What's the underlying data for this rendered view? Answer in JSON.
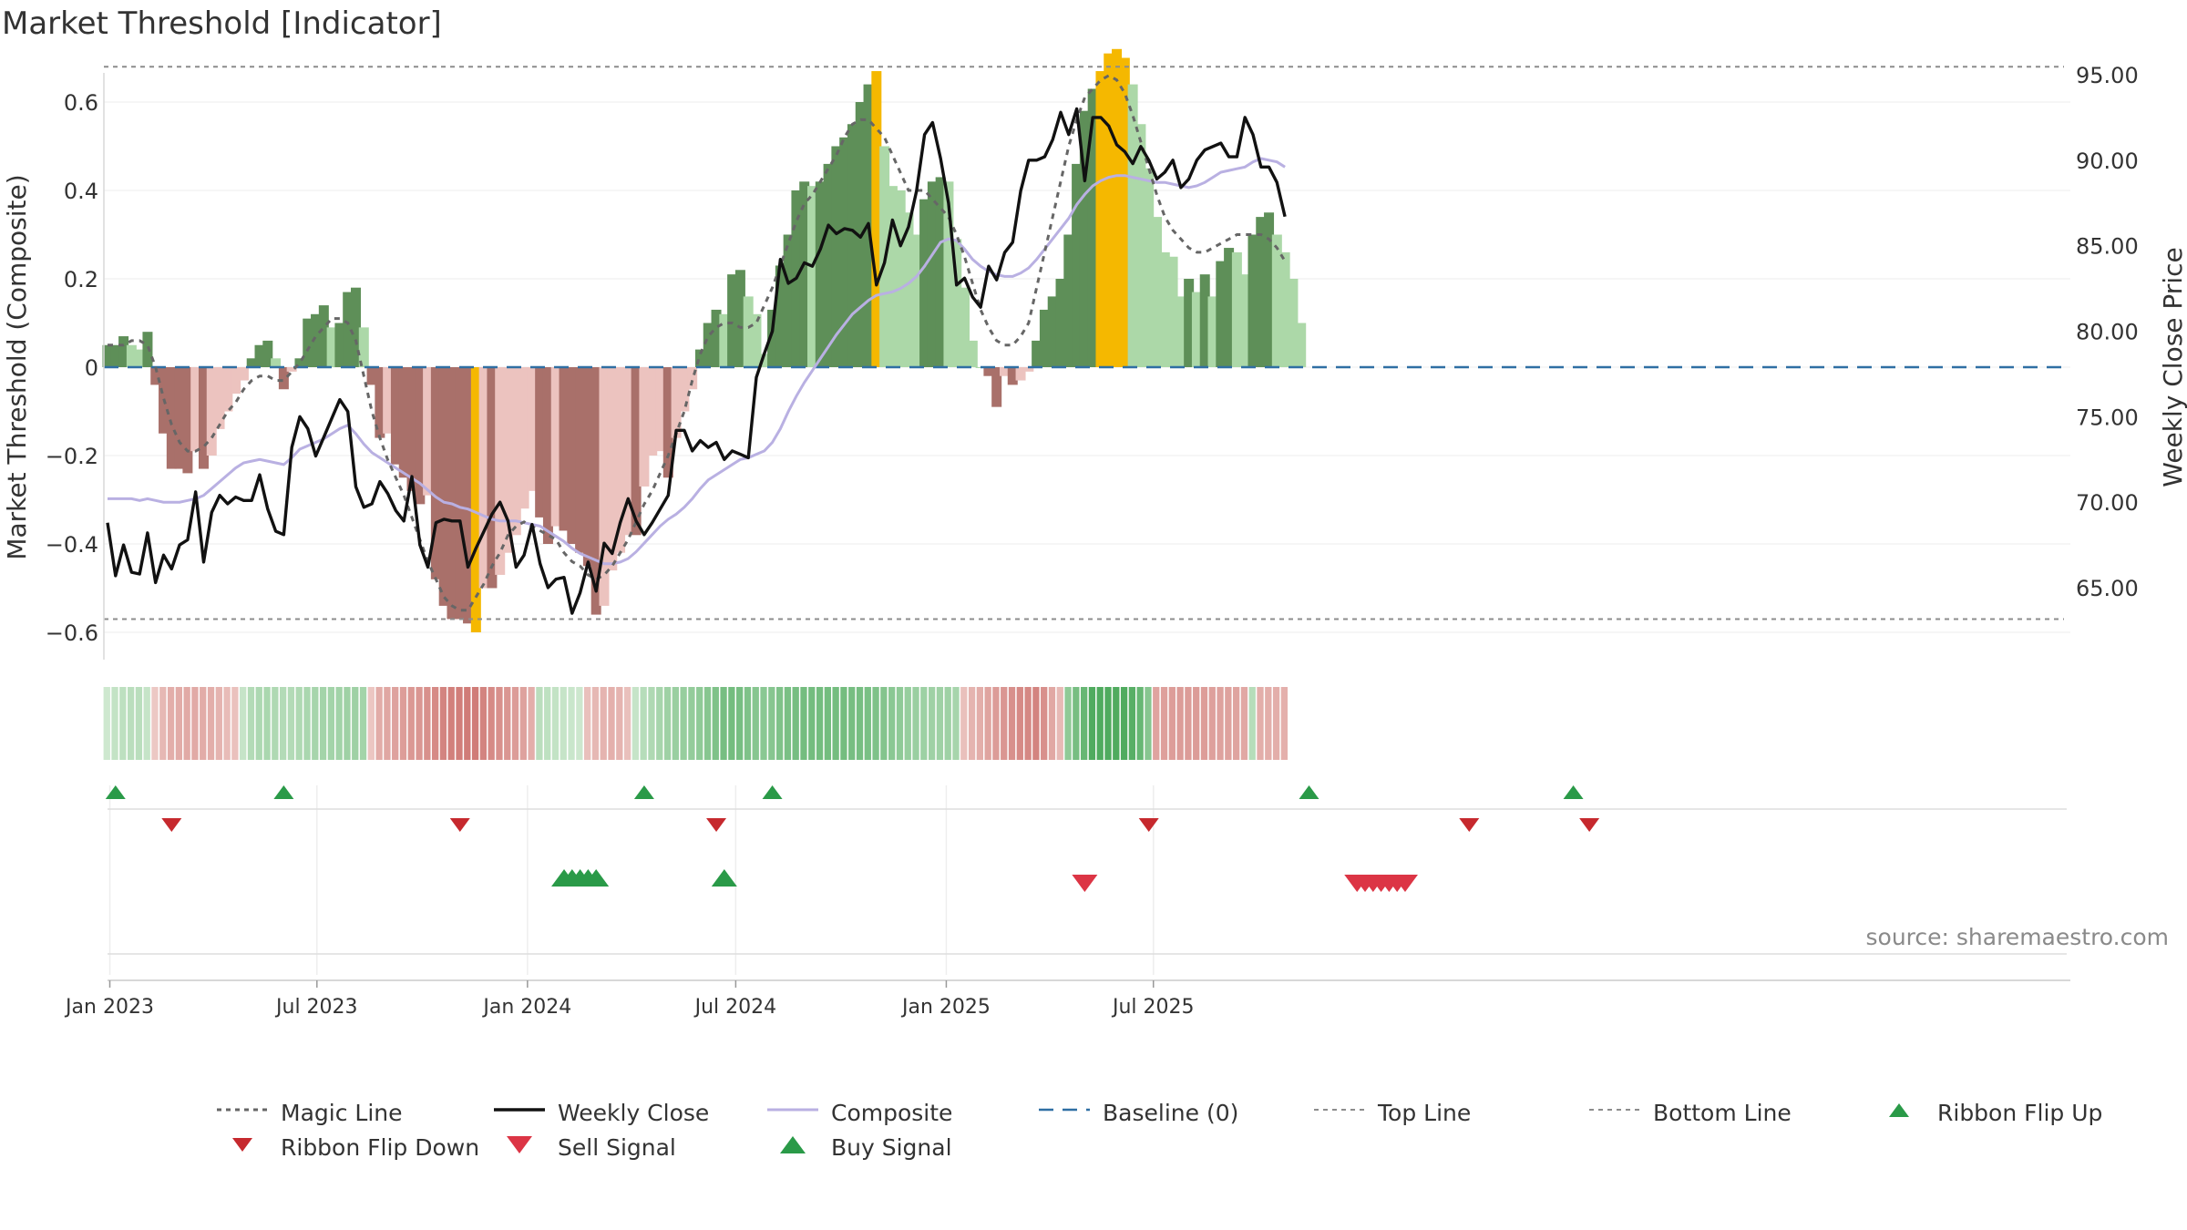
{
  "title": "Market Threshold [Indicator]",
  "source": "source: sharemaestro.com",
  "colors": {
    "bull_light": "#acd8a8",
    "bull_dark": "#5e8f58",
    "bear_light": "#ecc3bf",
    "bear_dark": "#a9706a",
    "extreme": "#f5b800",
    "weekly_close": "#111111",
    "composite": "#b9b0e2",
    "magic": "#666666",
    "baseline": "#2f6fa3",
    "flip_up": "#2a9a48",
    "flip_down": "#c6292e",
    "sell": "#dc3545",
    "buy": "#2a9a48"
  },
  "chart_data": {
    "type": "bar",
    "start_week": "2022-12-30",
    "left_axis": {
      "label": "Market Threshold (Composite)",
      "ticks": [
        "−0.6",
        "−0.4",
        "−0.2",
        "0",
        "0.2",
        "0.4",
        "0.6"
      ],
      "tick_values": [
        -0.6,
        -0.4,
        -0.2,
        0,
        0.2,
        0.4,
        0.6
      ],
      "ylim": [
        -0.8,
        0.8
      ]
    },
    "right_axis": {
      "label": "Weekly Close Price",
      "ticks": [
        "65.00",
        "70.00",
        "75.00",
        "80.00",
        "85.00",
        "90.00",
        "95.00"
      ],
      "tick_values": [
        65,
        70,
        75,
        80,
        85,
        90,
        95
      ],
      "ylim": [
        60.7,
        96.5
      ]
    },
    "x_axis": {
      "ticks": [
        "Jan 2023",
        "Jul 2023",
        "Jan 2024",
        "Jul 2024",
        "Jan 2025",
        "Jul 2025"
      ],
      "tick_dates": [
        "2023-01-01",
        "2023-07-01",
        "2024-01-01",
        "2024-07-01",
        "2025-01-01",
        "2025-07-01"
      ]
    },
    "reference_lines": {
      "top": 0.68,
      "bottom": -0.57,
      "baseline": 0
    },
    "composite_bars": [
      0.05,
      0.05,
      0.07,
      0.05,
      0.04,
      0.08,
      -0.04,
      -0.15,
      -0.23,
      -0.23,
      -0.24,
      -0.19,
      -0.23,
      -0.2,
      -0.14,
      -0.1,
      -0.06,
      -0.03,
      0.02,
      0.05,
      0.06,
      0.02,
      -0.05,
      -0.01,
      0.02,
      0.11,
      0.12,
      0.14,
      0.09,
      0.1,
      0.17,
      0.18,
      0.09,
      -0.04,
      -0.16,
      -0.15,
      -0.22,
      -0.25,
      -0.28,
      -0.31,
      -0.29,
      -0.48,
      -0.54,
      -0.57,
      -0.57,
      -0.58,
      -0.6,
      -0.5,
      -0.5,
      -0.47,
      -0.42,
      -0.38,
      -0.32,
      -0.28,
      -0.34,
      -0.4,
      -0.36,
      -0.37,
      -0.4,
      -0.42,
      -0.45,
      -0.56,
      -0.54,
      -0.46,
      -0.42,
      -0.38,
      -0.38,
      -0.27,
      -0.2,
      -0.19,
      -0.25,
      -0.16,
      -0.1,
      -0.05,
      0.04,
      0.1,
      0.13,
      0.12,
      0.21,
      0.22,
      0.16,
      0.12,
      0.03,
      0.13,
      0.23,
      0.3,
      0.4,
      0.42,
      0.41,
      0.42,
      0.46,
      0.5,
      0.52,
      0.55,
      0.6,
      0.64,
      0.67,
      0.5,
      0.41,
      0.4,
      0.35,
      0.3,
      0.38,
      0.42,
      0.43,
      0.42,
      0.29,
      0.18,
      0.06,
      0,
      -0.02,
      -0.09,
      -0.02,
      -0.04,
      -0.03,
      -0.01,
      0.06,
      0.13,
      0.16,
      0.2,
      0.3,
      0.46,
      0.58,
      0.63,
      0.67,
      0.71,
      0.72,
      0.7,
      0.64,
      0.55,
      0.45,
      0.34,
      0.26,
      0.25,
      0.16,
      0.2,
      0.17,
      0.21,
      0.16,
      0.24,
      0.27,
      0.26,
      0.21,
      0.3,
      0.34,
      0.35,
      0.3,
      0.26,
      0.2,
      0.1
    ],
    "weekly_close": [
      68.8,
      65.7,
      67.5,
      65.9,
      65.8,
      68.2,
      65.3,
      66.9,
      66.1,
      67.5,
      67.8,
      70.6,
      66.5,
      69.4,
      70.4,
      69.9,
      70.3,
      70.1,
      70.1,
      71.6,
      69.6,
      68.3,
      68.1,
      73.2,
      75.0,
      74.3,
      72.7,
      73.8,
      74.9,
      76.0,
      75.3,
      70.9,
      69.7,
      69.9,
      71.2,
      70.5,
      69.5,
      68.9,
      71.5,
      67.5,
      66.2,
      68.8,
      69.0,
      68.9,
      68.9,
      66.2,
      67.3,
      68.3,
      69.3,
      70.0,
      68.9,
      66.2,
      66.9,
      68.7,
      66.4,
      65.0,
      65.5,
      65.6,
      63.5,
      64.7,
      66.5,
      64.8,
      67.6,
      67.0,
      68.8,
      70.2,
      68.9,
      68.1,
      68.8,
      69.6,
      70.4,
      74.2,
      74.2,
      73.0,
      73.6,
      73.2,
      73.5,
      72.5,
      73.0,
      72.8,
      72.6,
      77.3,
      78.7,
      80.0,
      84.2,
      82.8,
      83.1,
      84.0,
      83.8,
      84.8,
      86.2,
      85.7,
      86.0,
      85.9,
      85.5,
      86.3,
      82.7,
      84.0,
      86.5,
      85.0,
      86.1,
      88.2,
      91.5,
      92.2,
      90.1,
      87.5,
      82.7,
      83.1,
      82.0,
      81.4,
      83.8,
      83.0,
      84.6,
      85.2,
      88.2,
      90.0,
      90.0,
      90.2,
      91.2,
      92.8,
      91.5,
      93.0,
      88.8,
      92.5,
      92.5,
      92.0,
      90.9,
      90.5,
      89.8,
      90.8,
      90.0,
      88.9,
      89.3,
      90.0,
      88.4,
      88.9,
      90.0,
      90.6,
      90.8,
      91.0,
      90.2,
      90.2,
      92.5,
      91.5,
      89.6,
      89.6,
      88.7,
      86.7
    ],
    "composite_line": [
      70.2,
      70.2,
      70.2,
      70.2,
      70.1,
      70.2,
      70.1,
      70.0,
      70.0,
      70.0,
      70.1,
      70.2,
      70.4,
      70.8,
      71.2,
      71.6,
      72.0,
      72.3,
      72.4,
      72.5,
      72.4,
      72.3,
      72.2,
      72.6,
      73.1,
      73.3,
      73.5,
      73.7,
      74.0,
      74.3,
      74.5,
      74.0,
      73.4,
      72.9,
      72.6,
      72.3,
      72.0,
      71.7,
      71.4,
      71.1,
      70.7,
      70.3,
      70.0,
      69.9,
      69.7,
      69.6,
      69.4,
      69.2,
      69.0,
      68.9,
      68.9,
      68.9,
      68.8,
      68.7,
      68.6,
      68.3,
      68.0,
      67.7,
      67.3,
      67.0,
      66.8,
      66.6,
      66.4,
      66.4,
      66.5,
      66.7,
      67.1,
      67.6,
      68.1,
      68.6,
      69.0,
      69.3,
      69.7,
      70.2,
      70.8,
      71.3,
      71.6,
      71.9,
      72.2,
      72.5,
      72.6,
      72.8,
      73.0,
      73.5,
      74.3,
      75.3,
      76.2,
      77.0,
      77.7,
      78.4,
      79.1,
      79.8,
      80.4,
      81.0,
      81.4,
      81.8,
      82.1,
      82.2,
      82.3,
      82.5,
      82.8,
      83.2,
      83.8,
      84.5,
      85.2,
      85.4,
      85.3,
      84.8,
      84.2,
      83.8,
      83.5,
      83.3,
      83.2,
      83.2,
      83.4,
      83.7,
      84.2,
      84.8,
      85.4,
      86.0,
      86.6,
      87.4,
      88.0,
      88.5,
      88.8,
      89.0,
      89.1,
      89.1,
      89.0,
      88.9,
      88.8,
      88.7,
      88.7,
      88.6,
      88.5,
      88.4,
      88.5,
      88.7,
      89.0,
      89.3,
      89.4,
      89.5,
      89.6,
      89.9,
      90.1,
      90.0,
      89.9,
      89.6
    ],
    "magic_line": [
      0.05,
      0.05,
      0.05,
      0.06,
      0.06,
      0.05,
      0.0,
      -0.07,
      -0.13,
      -0.17,
      -0.19,
      -0.19,
      -0.18,
      -0.16,
      -0.13,
      -0.1,
      -0.08,
      -0.05,
      -0.03,
      -0.02,
      -0.02,
      -0.03,
      -0.03,
      -0.01,
      0.01,
      0.04,
      0.07,
      0.09,
      0.11,
      0.11,
      0.1,
      0.06,
      -0.02,
      -0.1,
      -0.16,
      -0.21,
      -0.25,
      -0.29,
      -0.34,
      -0.39,
      -0.44,
      -0.48,
      -0.52,
      -0.54,
      -0.55,
      -0.55,
      -0.52,
      -0.49,
      -0.45,
      -0.42,
      -0.38,
      -0.36,
      -0.35,
      -0.36,
      -0.37,
      -0.38,
      -0.39,
      -0.42,
      -0.44,
      -0.45,
      -0.47,
      -0.48,
      -0.47,
      -0.45,
      -0.42,
      -0.39,
      -0.35,
      -0.31,
      -0.28,
      -0.24,
      -0.2,
      -0.15,
      -0.1,
      -0.03,
      0.03,
      0.07,
      0.09,
      0.1,
      0.1,
      0.09,
      0.09,
      0.1,
      0.14,
      0.18,
      0.23,
      0.28,
      0.33,
      0.37,
      0.39,
      0.42,
      0.45,
      0.48,
      0.52,
      0.55,
      0.56,
      0.56,
      0.54,
      0.52,
      0.48,
      0.44,
      0.4,
      0.4,
      0.4,
      0.38,
      0.36,
      0.34,
      0.3,
      0.25,
      0.19,
      0.13,
      0.09,
      0.06,
      0.05,
      0.05,
      0.07,
      0.1,
      0.18,
      0.26,
      0.34,
      0.42,
      0.5,
      0.56,
      0.61,
      0.63,
      0.65,
      0.66,
      0.65,
      0.62,
      0.57,
      0.51,
      0.45,
      0.39,
      0.34,
      0.31,
      0.29,
      0.27,
      0.26,
      0.26,
      0.27,
      0.28,
      0.29,
      0.3,
      0.3,
      0.3,
      0.3,
      0.29,
      0.27,
      0.24
    ],
    "ribbon": [
      0.05,
      0.12,
      0.16,
      0.18,
      0.18,
      0.1,
      -0.08,
      -0.22,
      -0.3,
      -0.32,
      -0.33,
      -0.33,
      -0.32,
      -0.3,
      -0.25,
      -0.18,
      -0.14,
      0.1,
      0.22,
      0.26,
      0.28,
      0.25,
      0.22,
      0.22,
      0.25,
      0.28,
      0.3,
      0.32,
      0.32,
      0.33,
      0.35,
      0.35,
      0.32,
      -0.1,
      -0.32,
      -0.36,
      -0.4,
      -0.44,
      -0.48,
      -0.5,
      -0.55,
      -0.6,
      -0.65,
      -0.68,
      -0.7,
      -0.72,
      -0.72,
      -0.65,
      -0.6,
      -0.55,
      -0.5,
      -0.45,
      -0.4,
      -0.3,
      0.18,
      0.15,
      0.12,
      0.1,
      0.08,
      0.06,
      -0.15,
      -0.22,
      -0.25,
      -0.28,
      -0.25,
      -0.15,
      0.1,
      0.2,
      0.25,
      0.3,
      0.35,
      0.38,
      0.4,
      0.42,
      0.45,
      0.5,
      0.55,
      0.6,
      0.62,
      0.6,
      0.55,
      0.5,
      0.48,
      0.5,
      0.55,
      0.58,
      0.6,
      0.62,
      0.62,
      0.62,
      0.62,
      0.62,
      0.62,
      0.6,
      0.6,
      0.58,
      0.55,
      0.52,
      0.48,
      0.45,
      0.4,
      0.38,
      0.36,
      0.35,
      0.35,
      0.35,
      0.3,
      -0.15,
      -0.25,
      -0.3,
      -0.38,
      -0.45,
      -0.5,
      -0.55,
      -0.6,
      -0.62,
      -0.65,
      -0.55,
      -0.35,
      -0.2,
      0.45,
      0.6,
      0.7,
      0.85,
      0.85,
      0.85,
      0.85,
      0.85,
      0.8,
      0.7,
      0.5,
      -0.38,
      -0.42,
      -0.44,
      -0.45,
      -0.45,
      -0.45,
      -0.44,
      -0.42,
      -0.4,
      -0.4,
      -0.38,
      -0.35,
      0.2,
      -0.3,
      -0.3,
      -0.3,
      -0.28
    ],
    "ribbon_flip_up_weeks": [
      1,
      22,
      67,
      83,
      150,
      183
    ],
    "ribbon_flip_down_weeks": [
      8,
      44,
      76,
      130,
      170,
      185
    ],
    "buy_signal_weeks": [
      57,
      58,
      59,
      60,
      61,
      77
    ],
    "sell_signal_weeks": [
      122,
      156,
      157,
      158,
      159,
      160,
      161,
      162
    ]
  },
  "legend": [
    {
      "key": "magic",
      "label": "Magic Line"
    },
    {
      "key": "weekly_close",
      "label": "Weekly Close"
    },
    {
      "key": "composite",
      "label": "Composite"
    },
    {
      "key": "baseline",
      "label": "Baseline (0)"
    },
    {
      "key": "top",
      "label": "Top Line"
    },
    {
      "key": "bottom",
      "label": "Bottom Line"
    },
    {
      "key": "flip_up",
      "label": "Ribbon Flip Up"
    },
    {
      "key": "flip_down",
      "label": "Ribbon Flip Down"
    },
    {
      "key": "sell",
      "label": "Sell Signal"
    },
    {
      "key": "buy",
      "label": "Buy Signal"
    }
  ]
}
